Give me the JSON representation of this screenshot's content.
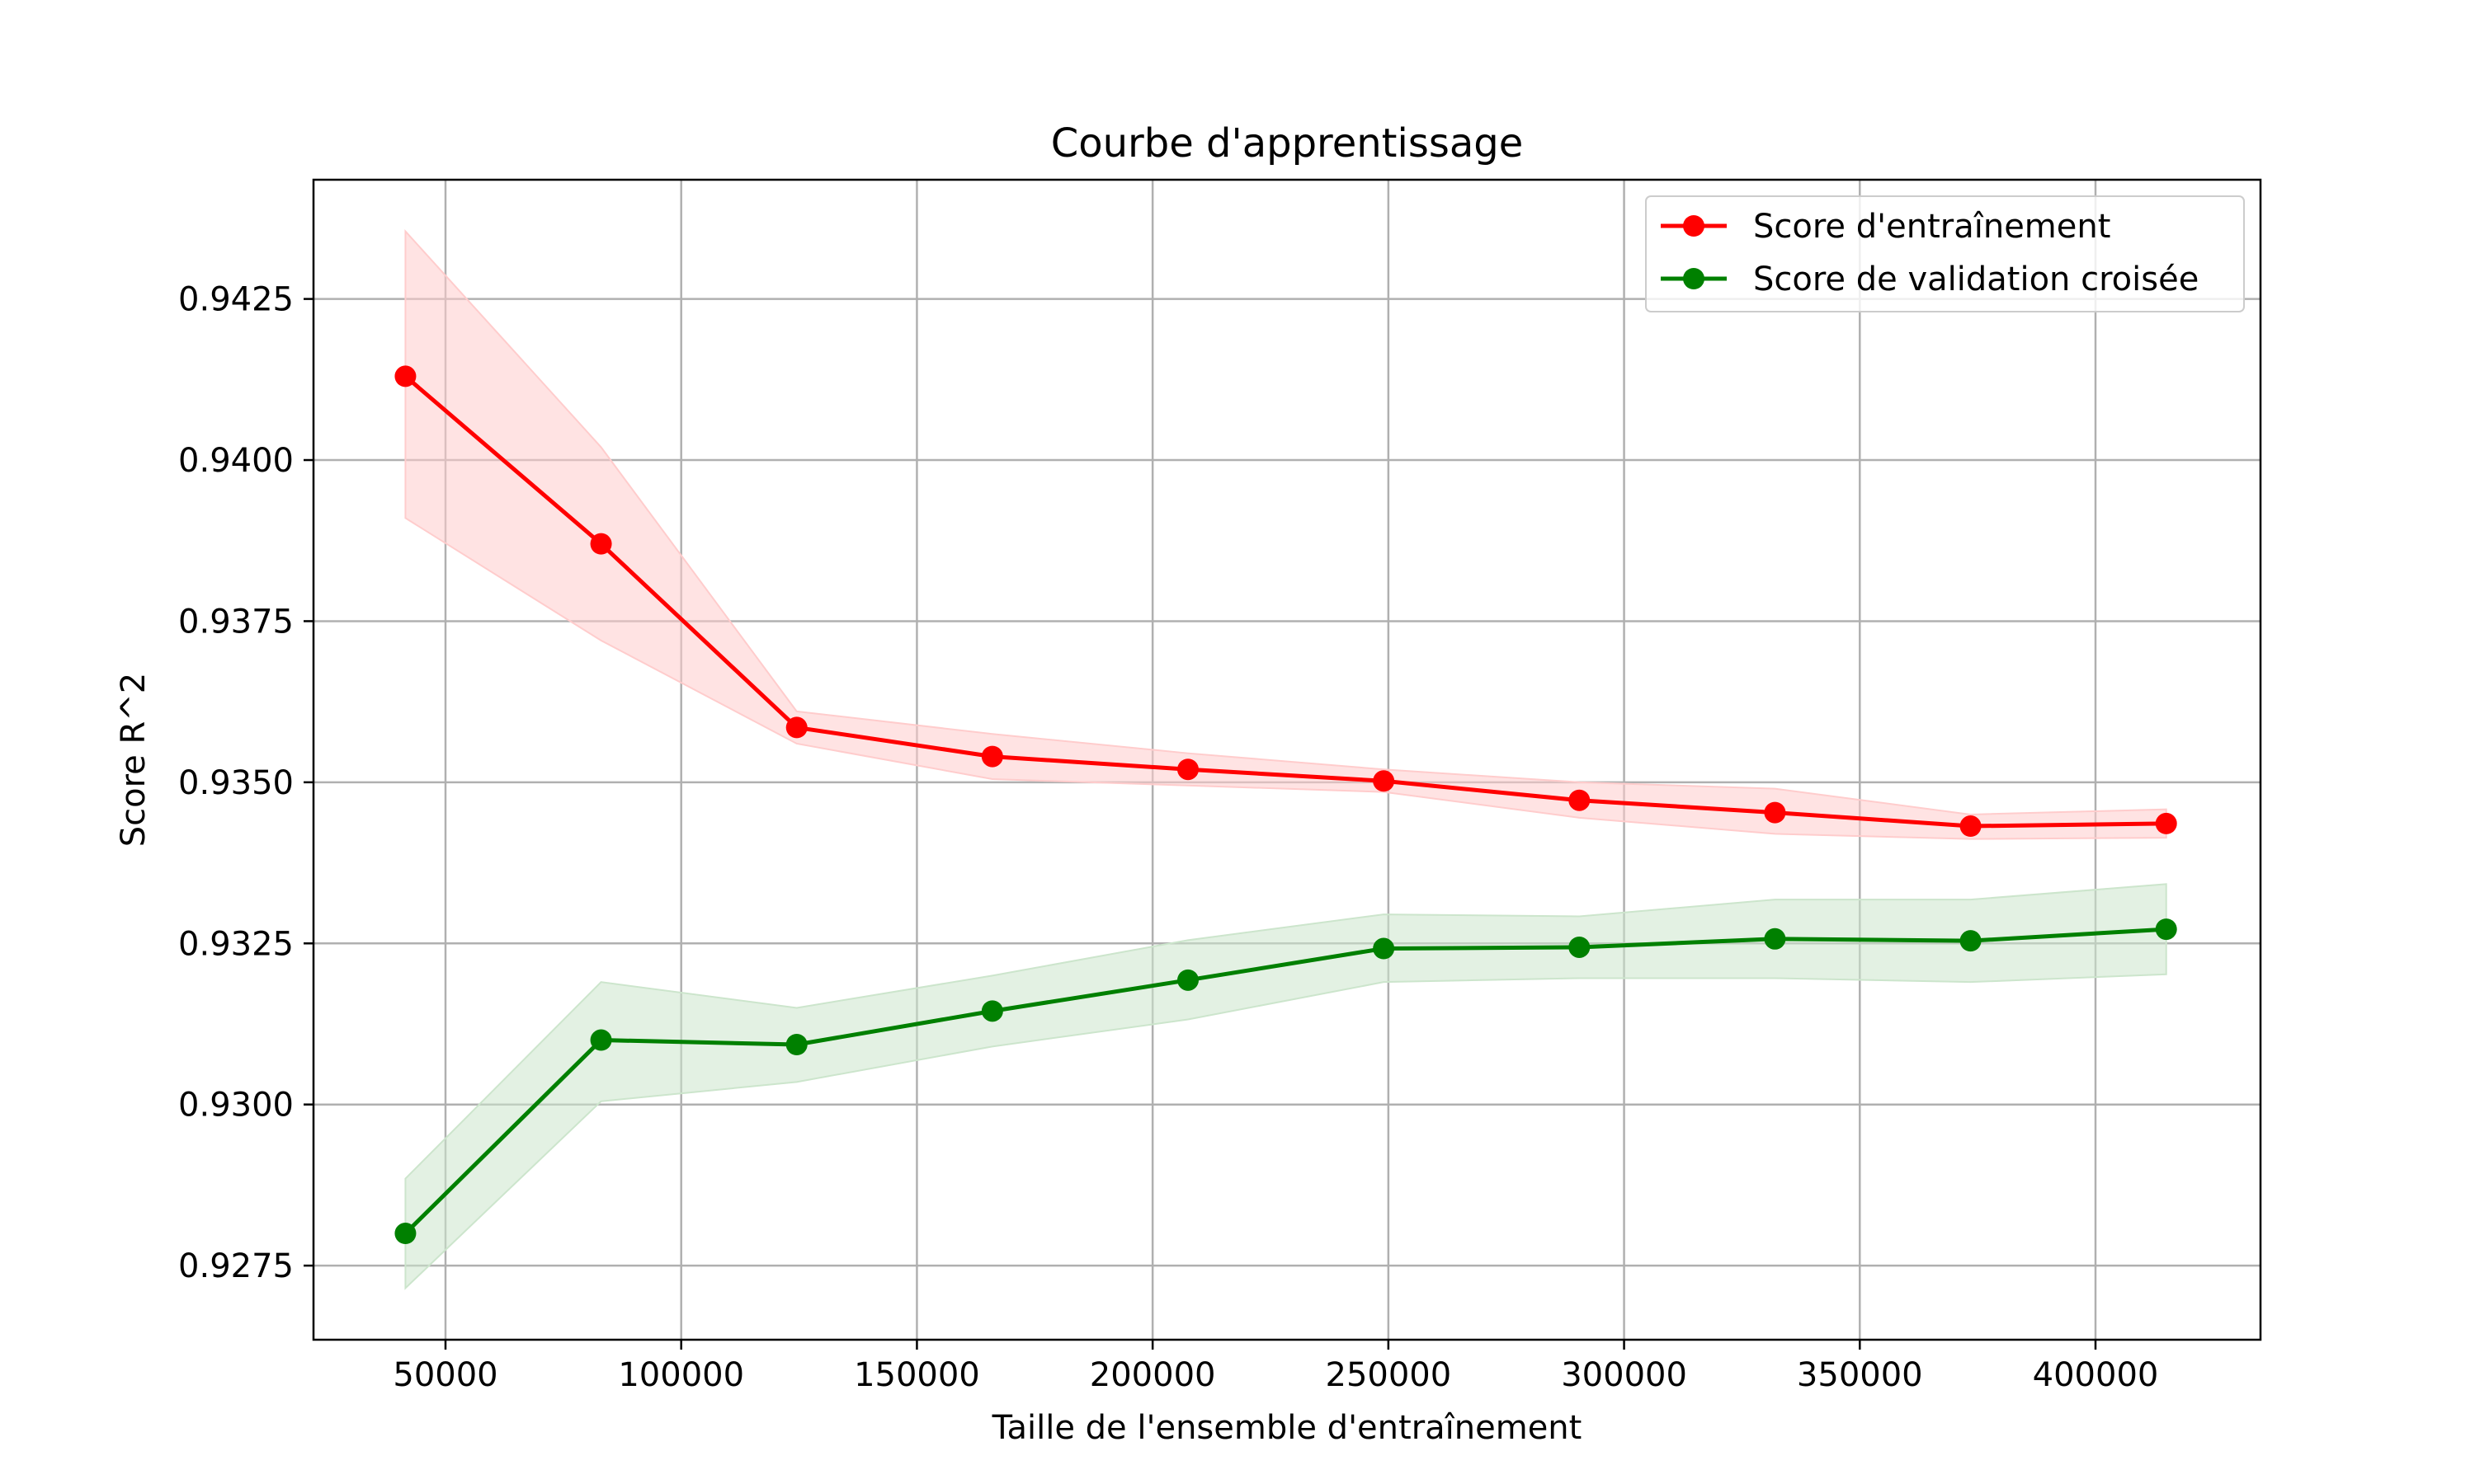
{
  "chart_data": {
    "type": "line",
    "title": "Courbe d'apprentissage",
    "xlabel": "Taille de l'ensemble d'entraînement",
    "ylabel": "Score R^2",
    "xlim": [
      22000,
      435000
    ],
    "ylim": [
      0.92635,
      0.94435
    ],
    "xticks": [
      50000,
      100000,
      150000,
      200000,
      250000,
      300000,
      350000,
      400000
    ],
    "xtick_labels": [
      "50000",
      "100000",
      "150000",
      "200000",
      "250000",
      "300000",
      "350000",
      "400000"
    ],
    "yticks": [
      0.9275,
      0.93,
      0.9325,
      0.935,
      0.9375,
      0.94,
      0.9425
    ],
    "ytick_labels": [
      "0.9275",
      "0.9300",
      "0.9325",
      "0.9350",
      "0.9375",
      "0.9400",
      "0.9425"
    ],
    "grid": true,
    "legend_position": "top-right",
    "x": [
      41500,
      83000,
      124500,
      166000,
      207500,
      249000,
      290500,
      332000,
      373500,
      415000
    ],
    "series": [
      {
        "name": "Score d'entraînement",
        "color": "#ff0000",
        "band_color": "#ffcccc",
        "values": [
          0.9413,
          0.9387,
          0.93585,
          0.9354,
          0.9352,
          0.93502,
          0.93472,
          0.93453,
          0.93432,
          0.93436
        ],
        "band_upper": [
          0.94355,
          0.9402,
          0.9361,
          0.93575,
          0.93545,
          0.9352,
          0.935,
          0.9349,
          0.9345,
          0.93458
        ],
        "band_lower": [
          0.9391,
          0.9372,
          0.9356,
          0.93505,
          0.93495,
          0.93485,
          0.93445,
          0.9342,
          0.93412,
          0.93414
        ]
      },
      {
        "name": "Score de validation croisée",
        "color": "#008000",
        "band_color": "#cce5cc",
        "values": [
          0.928,
          0.931,
          0.93093,
          0.93145,
          0.93193,
          0.93242,
          0.93244,
          0.93257,
          0.93254,
          0.93272
        ],
        "band_upper": [
          0.92885,
          0.9319,
          0.9315,
          0.932,
          0.93255,
          0.93295,
          0.93292,
          0.93318,
          0.93318,
          0.93342
        ],
        "band_lower": [
          0.92715,
          0.93005,
          0.93035,
          0.9309,
          0.93132,
          0.9319,
          0.93196,
          0.93196,
          0.9319,
          0.93202
        ]
      }
    ]
  }
}
